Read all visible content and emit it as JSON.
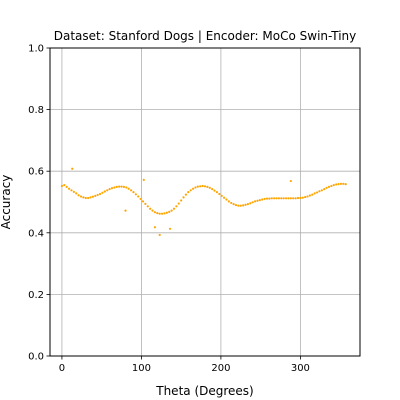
{
  "chart_data": {
    "type": "scatter",
    "title": "Dataset: Stanford Dogs | Encoder: MoCo Swin-Tiny",
    "xlabel": "Theta (Degrees)",
    "ylabel": "Accuracy",
    "xlim": [
      -15,
      375
    ],
    "ylim": [
      0.0,
      1.0
    ],
    "x_ticks": [
      0,
      100,
      200,
      300
    ],
    "y_ticks": [
      0.0,
      0.2,
      0.4,
      0.6,
      0.8,
      1.0
    ],
    "x_tick_labels": [
      "0",
      "100",
      "200",
      "300"
    ],
    "y_tick_labels": [
      "0.0",
      "0.2",
      "0.4",
      "0.6",
      "0.8",
      "1.0"
    ],
    "grid": true,
    "marker_color": "#FFA500",
    "series": [
      {
        "x": [
          0,
          3,
          6,
          9,
          12,
          15,
          18,
          21,
          24,
          27,
          30,
          33,
          36,
          39,
          42,
          45,
          48,
          51,
          54,
          57,
          60,
          63,
          66,
          69,
          72,
          75,
          78,
          81,
          84,
          87,
          90,
          93,
          96,
          99,
          102,
          105,
          108,
          111,
          114,
          117,
          120,
          123,
          126,
          129,
          132,
          135,
          138,
          141,
          144,
          147,
          150,
          153,
          156,
          159,
          162,
          165,
          168,
          171,
          174,
          177,
          180,
          183,
          186,
          189,
          192,
          195,
          198,
          201,
          204,
          207,
          210,
          213,
          216,
          219,
          222,
          225,
          228,
          231,
          234,
          237,
          240,
          243,
          246,
          249,
          252,
          255,
          258,
          261,
          264,
          267,
          270,
          273,
          276,
          279,
          282,
          285,
          288,
          291,
          294,
          297,
          300,
          303,
          306,
          309,
          312,
          315,
          318,
          321,
          324,
          327,
          330,
          333,
          336,
          339,
          342,
          345,
          348,
          351,
          354,
          357,
          13,
          80,
          103,
          117,
          123,
          136,
          288
        ],
        "y": [
          0.552,
          0.555,
          0.549,
          0.543,
          0.538,
          0.533,
          0.528,
          0.522,
          0.518,
          0.515,
          0.513,
          0.513,
          0.515,
          0.517,
          0.52,
          0.523,
          0.526,
          0.53,
          0.534,
          0.538,
          0.542,
          0.545,
          0.547,
          0.549,
          0.55,
          0.55,
          0.549,
          0.547,
          0.543,
          0.538,
          0.532,
          0.525,
          0.518,
          0.51,
          0.502,
          0.494,
          0.486,
          0.478,
          0.472,
          0.467,
          0.464,
          0.462,
          0.462,
          0.463,
          0.465,
          0.468,
          0.472,
          0.478,
          0.486,
          0.495,
          0.505,
          0.515,
          0.524,
          0.532,
          0.538,
          0.543,
          0.547,
          0.55,
          0.551,
          0.552,
          0.551,
          0.549,
          0.546,
          0.542,
          0.537,
          0.532,
          0.526,
          0.52,
          0.514,
          0.508,
          0.502,
          0.497,
          0.493,
          0.49,
          0.488,
          0.488,
          0.489,
          0.491,
          0.493,
          0.496,
          0.499,
          0.502,
          0.504,
          0.506,
          0.508,
          0.51,
          0.511,
          0.511,
          0.512,
          0.512,
          0.512,
          0.512,
          0.512,
          0.512,
          0.512,
          0.512,
          0.512,
          0.512,
          0.512,
          0.513,
          0.513,
          0.514,
          0.516,
          0.518,
          0.521,
          0.524,
          0.528,
          0.531,
          0.535,
          0.538,
          0.542,
          0.546,
          0.549,
          0.552,
          0.555,
          0.557,
          0.558,
          0.559,
          0.559,
          0.558,
          0.608,
          0.472,
          0.572,
          0.418,
          0.393,
          0.413,
          0.568
        ]
      }
    ]
  }
}
